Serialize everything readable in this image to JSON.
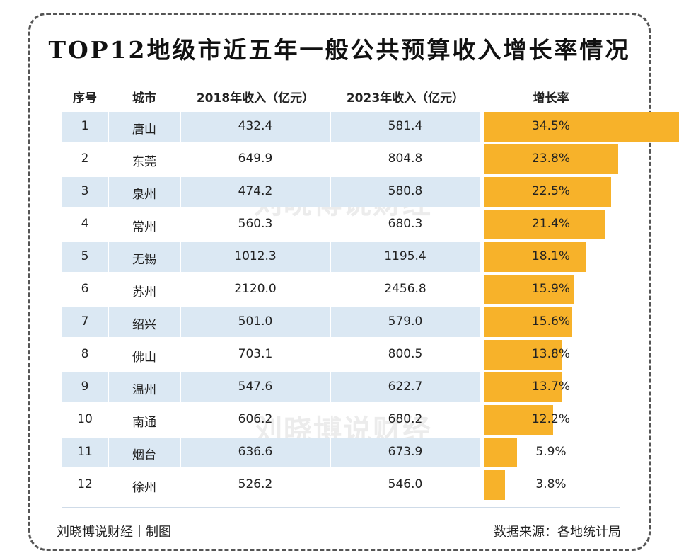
{
  "title": "TOP12地级市近五年一般公共预算收入增长率情况",
  "watermark": "刘晓博说财经",
  "footer": {
    "left": "刘晓博说财经丨制图",
    "right": "数据来源：各地统计局"
  },
  "colors": {
    "bar": "#f7b22a",
    "band": "#dbe8f3"
  },
  "chart_data": {
    "type": "table",
    "columns": [
      "序号",
      "城市",
      "2018年收入（亿元）",
      "2023年收入（亿元）",
      "增长率"
    ],
    "rows": [
      {
        "idx": "1",
        "city": "唐山",
        "y2018": "432.4",
        "y2023": "581.4",
        "rate": "34.5%",
        "rate_value": 34.5
      },
      {
        "idx": "2",
        "city": "东莞",
        "y2018": "649.9",
        "y2023": "804.8",
        "rate": "23.8%",
        "rate_value": 23.8
      },
      {
        "idx": "3",
        "city": "泉州",
        "y2018": "474.2",
        "y2023": "580.8",
        "rate": "22.5%",
        "rate_value": 22.5
      },
      {
        "idx": "4",
        "city": "常州",
        "y2018": "560.3",
        "y2023": "680.3",
        "rate": "21.4%",
        "rate_value": 21.4
      },
      {
        "idx": "5",
        "city": "无锡",
        "y2018": "1012.3",
        "y2023": "1195.4",
        "rate": "18.1%",
        "rate_value": 18.1
      },
      {
        "idx": "6",
        "city": "苏州",
        "y2018": "2120.0",
        "y2023": "2456.8",
        "rate": "15.9%",
        "rate_value": 15.9
      },
      {
        "idx": "7",
        "city": "绍兴",
        "y2018": "501.0",
        "y2023": "579.0",
        "rate": "15.6%",
        "rate_value": 15.6
      },
      {
        "idx": "8",
        "city": "佛山",
        "y2018": "703.1",
        "y2023": "800.5",
        "rate": "13.8%",
        "rate_value": 13.8
      },
      {
        "idx": "9",
        "city": "温州",
        "y2018": "547.6",
        "y2023": "622.7",
        "rate": "13.7%",
        "rate_value": 13.7
      },
      {
        "idx": "10",
        "city": "南通",
        "y2018": "606.2",
        "y2023": "680.2",
        "rate": "12.2%",
        "rate_value": 12.2
      },
      {
        "idx": "11",
        "city": "烟台",
        "y2018": "636.6",
        "y2023": "673.9",
        "rate": "5.9%",
        "rate_value": 5.9
      },
      {
        "idx": "12",
        "city": "徐州",
        "y2018": "526.2",
        "y2023": "546.0",
        "rate": "3.8%",
        "rate_value": 3.8
      }
    ],
    "bar_max": 34.5
  }
}
